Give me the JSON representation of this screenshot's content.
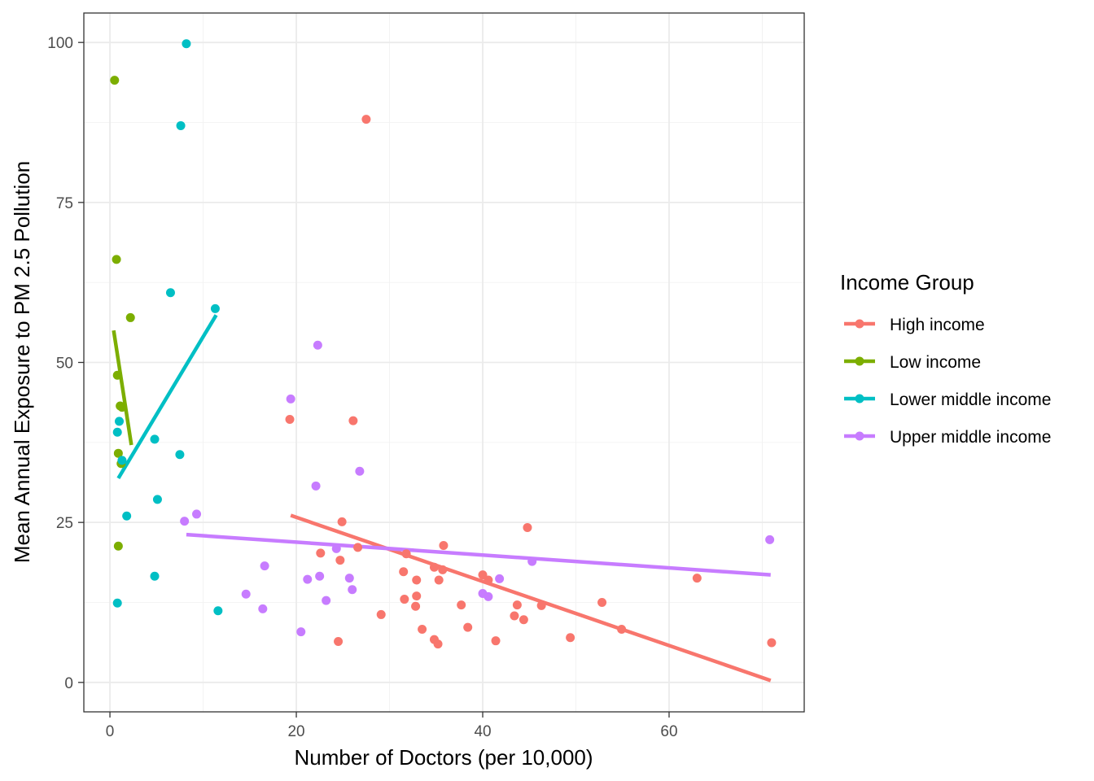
{
  "chart_data": {
    "type": "scatter",
    "title": "",
    "xlabel": "Number of Doctors (per 10,000)",
    "ylabel": "Mean Annual Exposure to PM 2.5 Pollution",
    "xlim": [
      -2.8,
      74.5
    ],
    "ylim": [
      -4.6,
      104.6
    ],
    "x_ticks": [
      0,
      20,
      40,
      60
    ],
    "y_ticks": [
      0,
      25,
      50,
      75,
      100
    ],
    "grid": true,
    "theme": "bw",
    "legend": {
      "title": "Income Group",
      "position": "right"
    },
    "series": [
      {
        "name": "High income",
        "color": "#F8766D",
        "trend": [
          [
            19.4,
            26.1
          ],
          [
            70.9,
            0.3
          ]
        ],
        "points": [
          [
            19.3,
            41.1
          ],
          [
            26.1,
            40.9
          ],
          [
            27.5,
            88.0
          ],
          [
            24.9,
            25.1
          ],
          [
            22.6,
            20.2
          ],
          [
            24.7,
            19.1
          ],
          [
            26.6,
            21.1
          ],
          [
            29.1,
            10.6
          ],
          [
            24.5,
            6.4
          ],
          [
            31.5,
            17.3
          ],
          [
            31.8,
            20.1
          ],
          [
            32.9,
            16.0
          ],
          [
            31.6,
            13.0
          ],
          [
            32.9,
            13.5
          ],
          [
            32.8,
            11.9
          ],
          [
            33.5,
            8.3
          ],
          [
            34.8,
            18.0
          ],
          [
            35.7,
            17.6
          ],
          [
            35.8,
            21.4
          ],
          [
            35.3,
            16.0
          ],
          [
            34.8,
            6.7
          ],
          [
            35.2,
            6.0
          ],
          [
            37.7,
            12.1
          ],
          [
            38.4,
            8.6
          ],
          [
            40.0,
            16.8
          ],
          [
            40.6,
            16.0
          ],
          [
            41.4,
            6.5
          ],
          [
            43.4,
            10.4
          ],
          [
            43.7,
            12.1
          ],
          [
            44.4,
            9.8
          ],
          [
            44.8,
            24.2
          ],
          [
            46.3,
            12.0
          ],
          [
            49.4,
            7.0
          ],
          [
            52.8,
            12.5
          ],
          [
            54.9,
            8.3
          ],
          [
            63.0,
            16.3
          ],
          [
            71.0,
            6.2
          ]
        ]
      },
      {
        "name": "Low income",
        "color": "#7CAE00",
        "trend": [
          [
            0.4,
            55.0
          ],
          [
            2.3,
            37.1
          ]
        ],
        "points": [
          [
            0.5,
            94.1
          ],
          [
            0.7,
            66.1
          ],
          [
            2.2,
            57.0
          ],
          [
            0.8,
            48.0
          ],
          [
            1.1,
            43.2
          ],
          [
            1.3,
            43.0
          ],
          [
            0.9,
            35.8
          ],
          [
            1.2,
            34.2
          ],
          [
            0.9,
            21.3
          ]
        ]
      },
      {
        "name": "Lower middle income",
        "color": "#00BFC4",
        "trend": [
          [
            0.9,
            31.9
          ],
          [
            11.4,
            57.4
          ]
        ],
        "points": [
          [
            8.2,
            99.8
          ],
          [
            7.6,
            87.0
          ],
          [
            6.5,
            60.9
          ],
          [
            11.3,
            58.4
          ],
          [
            1.0,
            40.8
          ],
          [
            0.8,
            39.1
          ],
          [
            4.8,
            38.0
          ],
          [
            1.3,
            34.7
          ],
          [
            7.5,
            35.6
          ],
          [
            5.1,
            28.6
          ],
          [
            1.8,
            26.0
          ],
          [
            4.8,
            16.6
          ],
          [
            0.8,
            12.4
          ],
          [
            11.6,
            11.2
          ]
        ]
      },
      {
        "name": "Upper middle income",
        "color": "#C77CFF",
        "trend": [
          [
            8.2,
            23.1
          ],
          [
            70.9,
            16.8
          ]
        ],
        "points": [
          [
            22.3,
            52.7
          ],
          [
            19.4,
            44.3
          ],
          [
            26.8,
            33.0
          ],
          [
            22.1,
            30.7
          ],
          [
            9.3,
            26.3
          ],
          [
            8.0,
            25.2
          ],
          [
            16.6,
            18.2
          ],
          [
            14.6,
            13.8
          ],
          [
            16.4,
            11.5
          ],
          [
            20.5,
            7.9
          ],
          [
            21.2,
            16.1
          ],
          [
            22.5,
            16.6
          ],
          [
            23.2,
            12.8
          ],
          [
            24.3,
            20.9
          ],
          [
            25.7,
            16.3
          ],
          [
            26.0,
            14.5
          ],
          [
            40.0,
            13.9
          ],
          [
            40.6,
            13.4
          ],
          [
            41.8,
            16.2
          ],
          [
            45.3,
            18.9
          ],
          [
            70.8,
            22.3
          ]
        ]
      }
    ]
  }
}
